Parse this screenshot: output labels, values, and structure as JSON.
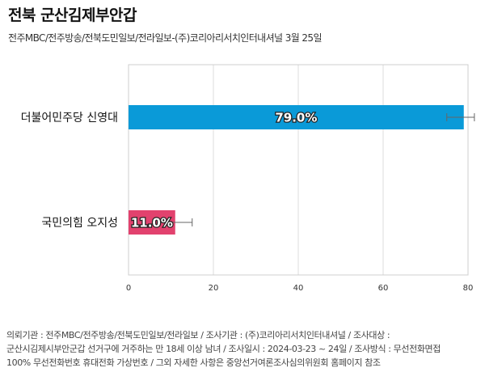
{
  "title": "전북 군산김제부안갑",
  "subtitle": "전주MBC/전주방송/전북도민일보/전라일보-(주)코리아리서치인터내셔널 3월 25일",
  "footer": {
    "line1": "의뢰기관 : 전주MBC/전주방송/전북도민일보/전라일보 / 조사기관 : (주)코리아리서치인터내셔널 / 조사대상 :",
    "line2": "군산시김제시부안군갑 선거구에 거주하는 만 18세 이상 남녀 / 조사일시 : 2024-03-23 ~ 24일 / 조사방식 : 무선전화면접",
    "line3": "100% 무선전화번호 휴대전화 가상번호 / 그외 자세한 사항은 중앙선거여론조사심의위원회 홈페이지 참조"
  },
  "chart_data": {
    "type": "bar",
    "orientation": "horizontal",
    "categories": [
      "더불어민주당 신영대",
      "국민의힘 오지성"
    ],
    "values": [
      79.0,
      11.0
    ],
    "value_labels": [
      "79.0%",
      "11.0%"
    ],
    "error_margin": 4.0,
    "colors": [
      "#0a9ad8",
      "#e2426e"
    ],
    "xlim": [
      0,
      80
    ],
    "xticks": [
      "0",
      "20",
      "40",
      "60",
      "80"
    ],
    "grid": true
  }
}
